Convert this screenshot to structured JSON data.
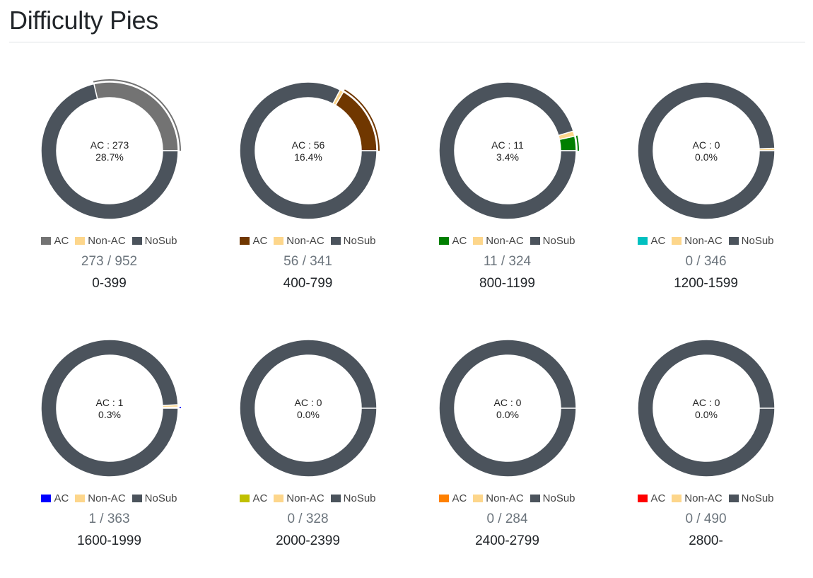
{
  "page": {
    "title": "Difficulty Pies"
  },
  "legend_labels": [
    "AC",
    "Non-AC",
    "NoSub"
  ],
  "colors": {
    "non_ac": "#fdd68b",
    "nosub": "#4b535c"
  },
  "chart_data": [
    {
      "type": "pie",
      "title": "0-399",
      "ac": 273,
      "non_ac": 0,
      "total": 952,
      "center_label": "AC : 273",
      "center_pct": "28.7%",
      "fraction": "273 / 952",
      "ac_color": "#737373"
    },
    {
      "type": "pie",
      "title": "400-799",
      "ac": 56,
      "non_ac": 3,
      "total": 341,
      "center_label": "AC : 56",
      "center_pct": "16.4%",
      "fraction": "56 / 341",
      "ac_color": "#703700"
    },
    {
      "type": "pie",
      "title": "800-1199",
      "ac": 11,
      "non_ac": 4,
      "total": 324,
      "center_label": "AC : 11",
      "center_pct": "3.4%",
      "fraction": "11 / 324",
      "ac_color": "#007f00"
    },
    {
      "type": "pie",
      "title": "1200-1599",
      "ac": 0,
      "non_ac": 2,
      "total": 346,
      "center_label": "AC : 0",
      "center_pct": "0.0%",
      "fraction": "0 / 346",
      "ac_color": "#00c0c0"
    },
    {
      "type": "pie",
      "title": "1600-1999",
      "ac": 1,
      "non_ac": 2,
      "total": 363,
      "center_label": "AC : 1",
      "center_pct": "0.3%",
      "fraction": "1 / 363",
      "ac_color": "#0000ff"
    },
    {
      "type": "pie",
      "title": "2000-2399",
      "ac": 0,
      "non_ac": 0,
      "total": 328,
      "center_label": "AC : 0",
      "center_pct": "0.0%",
      "fraction": "0 / 328",
      "ac_color": "#c0c000"
    },
    {
      "type": "pie",
      "title": "2400-2799",
      "ac": 0,
      "non_ac": 0,
      "total": 284,
      "center_label": "AC : 0",
      "center_pct": "0.0%",
      "fraction": "0 / 284",
      "ac_color": "#ff8000"
    },
    {
      "type": "pie",
      "title": "2800-",
      "ac": 0,
      "non_ac": 0,
      "total": 490,
      "center_label": "AC : 0",
      "center_pct": "0.0%",
      "fraction": "0 / 490",
      "ac_color": "#ff0000"
    }
  ]
}
